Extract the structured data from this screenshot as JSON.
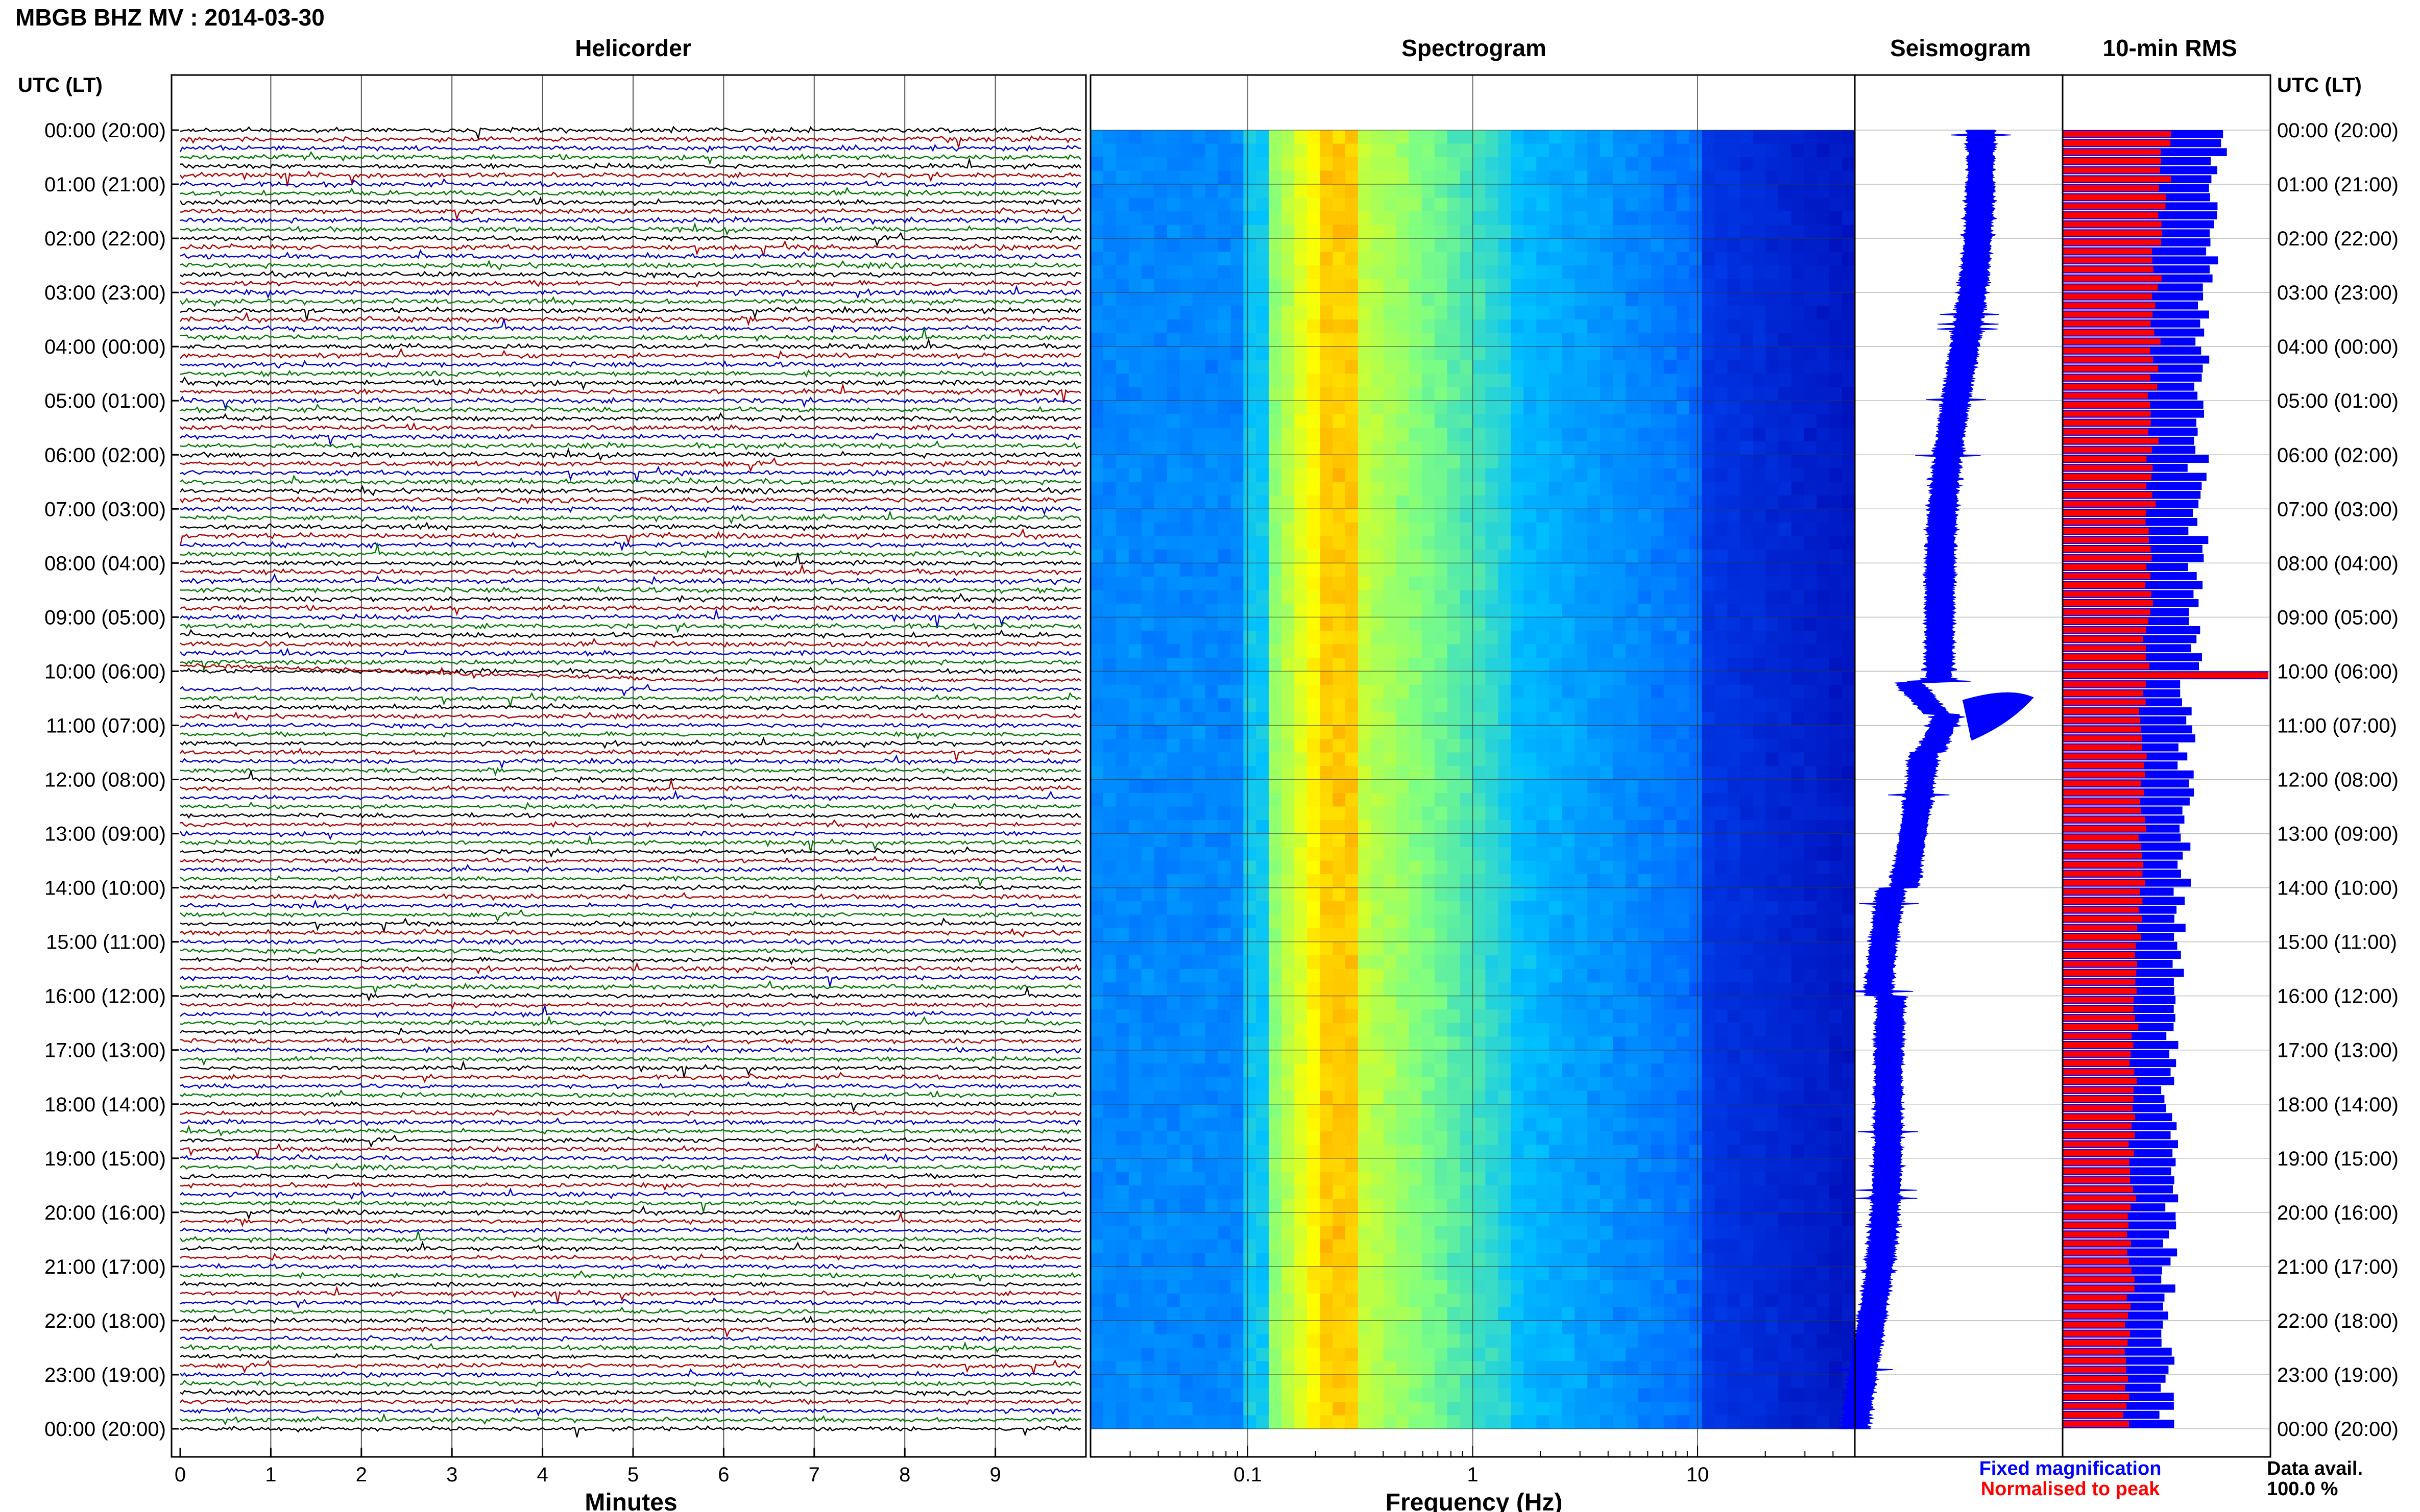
{
  "title": "MBGB BHZ MV : 2014-03-30",
  "panel_titles": {
    "helicorder": "Helicorder",
    "spectrogram": "Spectrogram",
    "seismogram": "Seismogram",
    "rms": "10-min RMS"
  },
  "utc_header_left": "UTC (LT)",
  "utc_header_right": "UTC (LT)",
  "time_labels": [
    "00:00 (20:00)",
    "01:00 (21:00)",
    "02:00 (22:00)",
    "03:00 (23:00)",
    "04:00 (00:00)",
    "05:00 (01:00)",
    "06:00 (02:00)",
    "07:00 (03:00)",
    "08:00 (04:00)",
    "09:00 (05:00)",
    "10:00 (06:00)",
    "11:00 (07:00)",
    "12:00 (08:00)",
    "13:00 (09:00)",
    "14:00 (10:00)",
    "15:00 (11:00)",
    "16:00 (12:00)",
    "17:00 (13:00)",
    "18:00 (14:00)",
    "19:00 (15:00)",
    "20:00 (16:00)",
    "21:00 (17:00)",
    "22:00 (18:00)",
    "23:00 (19:00)",
    "00:00 (20:00)"
  ],
  "legend": {
    "fixed": "Fixed magnification",
    "normalised": "Normalised to peak"
  },
  "data_avail": {
    "label": "Data avail.",
    "value": "100.0 %"
  },
  "chart_data": [
    {
      "type": "line",
      "panel": "helicorder",
      "title": "Helicorder",
      "xlabel": "Minutes",
      "xlim": [
        0,
        10
      ],
      "x_ticks": [
        "0",
        "1",
        "2",
        "3",
        "4",
        "5",
        "6",
        "7",
        "8",
        "9"
      ],
      "trace_colors": [
        "#000000",
        "#b00000",
        "#0000cc",
        "#007a00"
      ],
      "rows_per_hour": 6,
      "hours": 24,
      "notes": "One trace line per 10 minutes, cycling black, dark red, blue, green; drift event near 10:00 UTC"
    },
    {
      "type": "heatmap",
      "panel": "spectrogram",
      "title": "Spectrogram",
      "xlabel": "Frequency (Hz)",
      "x_scale": "log",
      "xlim": [
        0.02,
        50
      ],
      "x_ticks": [
        "0.1",
        "1",
        "10"
      ],
      "peak_band_hz": [
        0.2,
        0.3
      ],
      "colormap": [
        "#0000aa",
        "#0050ff",
        "#00c0ff",
        "#80ff80",
        "#ffff00",
        "#ff8000"
      ]
    },
    {
      "type": "line",
      "panel": "seismogram",
      "title": "Seismogram",
      "color": "#0000ff",
      "event_hours": [
        10.2,
        10.8
      ]
    },
    {
      "type": "bar",
      "panel": "rms",
      "title": "10-min RMS",
      "series": [
        {
          "name": "Fixed magnification",
          "color": "#0000ff",
          "hourly_values": [
            0.77,
            0.72,
            0.71,
            0.69,
            0.68,
            0.67,
            0.66,
            0.66,
            0.65,
            0.64,
            1.0,
            0.6,
            0.6,
            0.58,
            0.56,
            0.55,
            0.54,
            0.52,
            0.52,
            0.53,
            0.52,
            0.52,
            0.51,
            0.51
          ]
        },
        {
          "name": "Normalised to peak",
          "color": "#ff0000",
          "hourly_values": [
            0.5,
            0.48,
            0.46,
            0.45,
            0.44,
            0.44,
            0.43,
            0.42,
            0.42,
            0.41,
            1.0,
            0.39,
            0.39,
            0.38,
            0.37,
            0.36,
            0.35,
            0.34,
            0.34,
            0.34,
            0.33,
            0.33,
            0.32,
            0.31
          ]
        }
      ]
    }
  ]
}
